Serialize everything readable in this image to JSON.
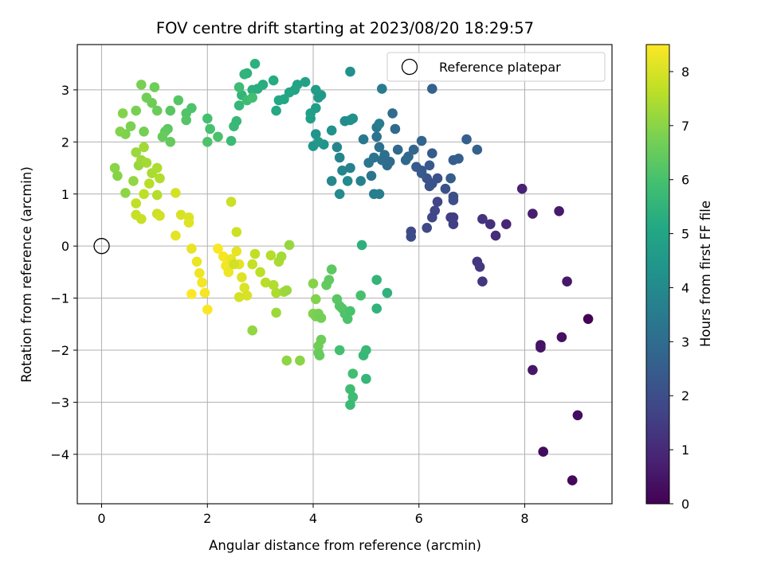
{
  "chart_data": {
    "type": "scatter",
    "title": "FOV centre drift starting at 2023/08/20 18:29:57",
    "xlabel": "Angular distance from reference (arcmin)",
    "ylabel": "Rotation from reference (arcmin)",
    "xlim": [
      -0.46,
      9.65
    ],
    "ylim": [
      -4.95,
      3.87
    ],
    "xticks": [
      0,
      2,
      4,
      6,
      8
    ],
    "yticks": [
      -4,
      -3,
      -2,
      -1,
      0,
      1,
      2,
      3
    ],
    "grid": true,
    "legend": {
      "placement": "top-right",
      "entries": [
        "Reference platepar"
      ]
    },
    "reference_point": {
      "x": 0,
      "y": 0,
      "label": "Reference platepar"
    },
    "colorbar": {
      "label": "Hours from first FF file",
      "min": 0,
      "max": 8.5,
      "ticks": [
        0,
        1,
        2,
        3,
        4,
        5,
        6,
        7,
        8
      ],
      "colormap": "viridis"
    },
    "points": [
      [
        9.2,
        -1.4,
        0.05
      ],
      [
        8.9,
        -4.5,
        0.15
      ],
      [
        8.35,
        -3.95,
        0.25
      ],
      [
        9.0,
        -3.25,
        0.3
      ],
      [
        8.7,
        -1.75,
        0.35
      ],
      [
        8.3,
        -1.9,
        0.4
      ],
      [
        8.3,
        -1.95,
        0.45
      ],
      [
        8.15,
        -2.38,
        0.5
      ],
      [
        8.8,
        -0.68,
        0.55
      ],
      [
        8.65,
        0.67,
        0.6
      ],
      [
        8.15,
        0.62,
        0.7
      ],
      [
        7.95,
        1.1,
        0.8
      ],
      [
        7.65,
        0.42,
        0.9
      ],
      [
        7.45,
        0.2,
        1.05
      ],
      [
        7.35,
        0.42,
        1.15
      ],
      [
        7.2,
        0.52,
        1.25
      ],
      [
        7.2,
        -0.68,
        1.3
      ],
      [
        7.1,
        -0.3,
        1.35
      ],
      [
        7.15,
        -0.4,
        1.4
      ],
      [
        6.65,
        0.55,
        1.5
      ],
      [
        6.6,
        0.55,
        1.55
      ],
      [
        6.65,
        0.42,
        1.6
      ],
      [
        6.35,
        0.85,
        1.7
      ],
      [
        6.3,
        0.68,
        1.75
      ],
      [
        6.25,
        0.55,
        1.8
      ],
      [
        6.15,
        0.35,
        1.85
      ],
      [
        5.85,
        0.28,
        1.9
      ],
      [
        5.85,
        0.18,
        1.95
      ],
      [
        6.65,
        0.95,
        2.0
      ],
      [
        6.65,
        0.88,
        2.05
      ],
      [
        6.5,
        1.1,
        2.1
      ],
      [
        6.35,
        1.3,
        2.1
      ],
      [
        6.2,
        1.15,
        2.15
      ],
      [
        6.25,
        1.2,
        2.2
      ],
      [
        6.15,
        1.3,
        2.25
      ],
      [
        6.05,
        1.45,
        2.3
      ],
      [
        6.05,
        1.4,
        2.35
      ],
      [
        5.95,
        1.52,
        2.4
      ],
      [
        6.2,
        1.55,
        2.35
      ],
      [
        6.25,
        1.78,
        2.4
      ],
      [
        6.6,
        1.3,
        2.45
      ],
      [
        6.65,
        1.65,
        2.5
      ],
      [
        6.75,
        1.68,
        2.55
      ],
      [
        6.9,
        2.05,
        2.6
      ],
      [
        7.1,
        1.85,
        2.65
      ],
      [
        6.25,
        3.02,
        2.7
      ],
      [
        6.05,
        2.02,
        2.75
      ],
      [
        5.9,
        1.85,
        2.8
      ],
      [
        5.8,
        1.72,
        2.85
      ],
      [
        5.75,
        1.65,
        2.9
      ],
      [
        5.6,
        1.85,
        2.9
      ],
      [
        5.55,
        2.25,
        2.95
      ],
      [
        5.5,
        2.55,
        3.0
      ],
      [
        5.45,
        1.62,
        2.95
      ],
      [
        5.4,
        1.55,
        3.0
      ],
      [
        5.35,
        1.75,
        3.05
      ],
      [
        5.3,
        1.65,
        3.1
      ],
      [
        5.25,
        1.9,
        3.15
      ],
      [
        5.2,
        2.1,
        3.2
      ],
      [
        5.15,
        1.7,
        3.25
      ],
      [
        5.1,
        1.35,
        3.3
      ],
      [
        5.05,
        1.6,
        3.35
      ],
      [
        4.95,
        2.05,
        3.4
      ],
      [
        5.2,
        2.28,
        3.45
      ],
      [
        5.25,
        2.35,
        3.5
      ],
      [
        5.3,
        3.02,
        3.55
      ],
      [
        5.25,
        1.0,
        3.6
      ],
      [
        5.15,
        1.0,
        3.65
      ],
      [
        4.9,
        1.25,
        3.7
      ],
      [
        4.7,
        1.5,
        3.75
      ],
      [
        4.55,
        1.45,
        3.8
      ],
      [
        4.5,
        1.7,
        3.85
      ],
      [
        4.45,
        1.9,
        3.9
      ],
      [
        4.35,
        1.25,
        3.95
      ],
      [
        4.5,
        1.0,
        4.0
      ],
      [
        4.65,
        1.25,
        4.05
      ],
      [
        4.6,
        2.4,
        4.1
      ],
      [
        4.7,
        2.42,
        4.15
      ],
      [
        4.75,
        2.45,
        4.2
      ],
      [
        4.7,
        3.35,
        4.25
      ],
      [
        4.35,
        2.22,
        4.3
      ],
      [
        4.2,
        1.95,
        4.35
      ],
      [
        4.05,
        2.15,
        4.4
      ],
      [
        4.0,
        1.92,
        4.45
      ],
      [
        4.1,
        2.0,
        4.5
      ],
      [
        4.15,
        2.9,
        4.55
      ],
      [
        4.1,
        2.85,
        4.6
      ],
      [
        4.05,
        3.0,
        4.65
      ],
      [
        4.05,
        2.65,
        4.7
      ],
      [
        3.95,
        2.45,
        4.75
      ],
      [
        3.95,
        2.55,
        4.8
      ],
      [
        3.85,
        3.15,
        4.85
      ],
      [
        3.7,
        3.1,
        4.9
      ],
      [
        3.65,
        3.0,
        4.95
      ],
      [
        3.55,
        2.95,
        5.0
      ],
      [
        3.45,
        2.82,
        5.05
      ],
      [
        3.35,
        2.8,
        5.1
      ],
      [
        3.3,
        2.6,
        5.15
      ],
      [
        3.25,
        3.18,
        5.2
      ],
      [
        3.05,
        3.1,
        5.25
      ],
      [
        2.95,
        3.02,
        5.3
      ],
      [
        2.85,
        3.0,
        5.35
      ],
      [
        2.9,
        3.5,
        5.4
      ],
      [
        2.75,
        3.32,
        5.45
      ],
      [
        2.7,
        3.3,
        5.5
      ],
      [
        2.65,
        2.9,
        5.55
      ],
      [
        2.6,
        2.7,
        5.6
      ],
      [
        2.55,
        2.4,
        5.65
      ],
      [
        2.5,
        2.3,
        5.7
      ],
      [
        2.45,
        2.02,
        5.75
      ],
      [
        2.6,
        3.05,
        5.8
      ],
      [
        2.75,
        2.8,
        5.85
      ],
      [
        2.85,
        2.85,
        5.9
      ],
      [
        2.0,
        2.45,
        5.95
      ],
      [
        2.05,
        2.25,
        6.0
      ],
      [
        2.2,
        2.1,
        6.05
      ],
      [
        2.0,
        2.0,
        6.1
      ],
      [
        1.7,
        2.65,
        6.1
      ],
      [
        1.6,
        2.55,
        6.15
      ],
      [
        1.6,
        2.42,
        6.2
      ],
      [
        1.45,
        2.8,
        6.25
      ],
      [
        1.3,
        2.6,
        6.3
      ],
      [
        1.25,
        2.25,
        6.35
      ],
      [
        1.2,
        2.2,
        6.4
      ],
      [
        1.3,
        2.0,
        6.45
      ],
      [
        1.15,
        2.1,
        6.5
      ],
      [
        1.05,
        2.6,
        6.55
      ],
      [
        1.0,
        3.05,
        6.6
      ],
      [
        0.95,
        2.75,
        6.6
      ],
      [
        0.85,
        2.85,
        6.65
      ],
      [
        0.8,
        2.2,
        6.7
      ],
      [
        0.75,
        3.1,
        6.75
      ],
      [
        0.65,
        2.6,
        6.75
      ],
      [
        0.55,
        2.3,
        6.8
      ],
      [
        0.45,
        2.15,
        6.85
      ],
      [
        0.35,
        2.2,
        6.9
      ],
      [
        0.4,
        2.55,
        6.9
      ],
      [
        0.3,
        1.35,
        6.95
      ],
      [
        0.25,
        1.5,
        7.0
      ],
      [
        0.45,
        1.02,
        7.05
      ],
      [
        0.6,
        1.25,
        7.1
      ],
      [
        0.7,
        1.55,
        7.15
      ],
      [
        0.65,
        1.8,
        7.2
      ],
      [
        0.75,
        1.65,
        7.25
      ],
      [
        0.8,
        1.9,
        7.3
      ],
      [
        0.85,
        1.6,
        7.35
      ],
      [
        0.95,
        1.4,
        7.4
      ],
      [
        1.05,
        1.5,
        7.45
      ],
      [
        1.1,
        1.3,
        7.5
      ],
      [
        1.05,
        0.98,
        7.55
      ],
      [
        0.9,
        1.2,
        7.6
      ],
      [
        0.8,
        1.0,
        7.65
      ],
      [
        0.65,
        0.82,
        7.7
      ],
      [
        0.65,
        0.6,
        7.75
      ],
      [
        0.75,
        0.52,
        7.8
      ],
      [
        1.05,
        0.62,
        7.85
      ],
      [
        1.1,
        0.58,
        7.9
      ],
      [
        1.4,
        1.02,
        7.95
      ],
      [
        1.5,
        0.6,
        8.0
      ],
      [
        1.65,
        0.55,
        8.05
      ],
      [
        1.65,
        0.45,
        8.1
      ],
      [
        1.4,
        0.2,
        8.15
      ],
      [
        1.7,
        -0.05,
        8.2
      ],
      [
        1.8,
        -0.3,
        8.25
      ],
      [
        1.85,
        -0.52,
        8.3
      ],
      [
        1.9,
        -0.7,
        8.35
      ],
      [
        1.95,
        -0.9,
        8.4
      ],
      [
        2.0,
        -1.22,
        8.45
      ],
      [
        1.7,
        -0.92,
        8.5
      ],
      [
        2.2,
        -0.05,
        8.45
      ],
      [
        2.3,
        -0.2,
        8.4
      ],
      [
        2.35,
        -0.38,
        8.35
      ],
      [
        2.4,
        -0.5,
        8.3
      ],
      [
        2.45,
        -0.25,
        8.25
      ],
      [
        2.55,
        -0.1,
        8.2
      ],
      [
        2.6,
        -0.35,
        8.15
      ],
      [
        2.65,
        -0.6,
        8.1
      ],
      [
        2.7,
        -0.8,
        8.05
      ],
      [
        2.75,
        -0.95,
        8.0
      ],
      [
        2.6,
        -0.98,
        7.95
      ],
      [
        2.5,
        -0.35,
        7.9
      ],
      [
        2.55,
        0.27,
        7.85
      ],
      [
        2.45,
        0.85,
        7.8
      ],
      [
        2.85,
        -0.35,
        7.75
      ],
      [
        2.9,
        -0.15,
        7.7
      ],
      [
        3.0,
        -0.5,
        7.65
      ],
      [
        3.1,
        -0.7,
        7.6
      ],
      [
        3.2,
        -0.18,
        7.55
      ],
      [
        3.25,
        -0.75,
        7.5
      ],
      [
        3.3,
        -0.9,
        7.45
      ],
      [
        3.35,
        -0.3,
        7.4
      ],
      [
        3.4,
        -0.2,
        7.35
      ],
      [
        3.45,
        -0.88,
        7.3
      ],
      [
        3.3,
        -1.28,
        7.25
      ],
      [
        3.5,
        -0.85,
        7.2
      ],
      [
        3.55,
        0.02,
        7.15
      ],
      [
        2.85,
        -1.62,
        7.1
      ],
      [
        3.5,
        -2.2,
        7.05
      ],
      [
        3.75,
        -2.2,
        7.0
      ],
      [
        4.0,
        -0.72,
        6.95
      ],
      [
        4.05,
        -1.02,
        6.9
      ],
      [
        4.0,
        -1.3,
        6.85
      ],
      [
        4.05,
        -1.35,
        6.8
      ],
      [
        4.1,
        -1.3,
        6.75
      ],
      [
        4.15,
        -1.38,
        6.7
      ],
      [
        4.1,
        -1.92,
        6.65
      ],
      [
        4.15,
        -1.8,
        6.6
      ],
      [
        4.1,
        -2.05,
        6.55
      ],
      [
        4.12,
        -2.1,
        6.5
      ],
      [
        4.25,
        -0.75,
        6.45
      ],
      [
        4.3,
        -0.65,
        6.4
      ],
      [
        4.35,
        -0.45,
        6.35
      ],
      [
        4.45,
        -1.02,
        6.3
      ],
      [
        4.5,
        -1.15,
        6.25
      ],
      [
        4.55,
        -1.2,
        6.2
      ],
      [
        4.6,
        -1.3,
        6.15
      ],
      [
        4.65,
        -1.4,
        6.1
      ],
      [
        4.7,
        -1.25,
        6.05
      ],
      [
        4.9,
        -0.95,
        6.0
      ],
      [
        4.5,
        -2.0,
        5.95
      ],
      [
        4.75,
        -2.45,
        5.9
      ],
      [
        4.7,
        -2.75,
        5.85
      ],
      [
        4.75,
        -2.9,
        5.8
      ],
      [
        4.7,
        -3.05,
        5.75
      ],
      [
        5.0,
        -2.0,
        5.7
      ],
      [
        4.95,
        -2.1,
        5.65
      ],
      [
        5.0,
        -2.55,
        5.6
      ],
      [
        5.2,
        -0.65,
        5.55
      ],
      [
        5.2,
        -1.2,
        5.5
      ],
      [
        5.4,
        -0.9,
        5.45
      ],
      [
        4.92,
        0.02,
        5.4
      ]
    ],
    "point_hours_scale": [
      0,
      8.5
    ]
  }
}
